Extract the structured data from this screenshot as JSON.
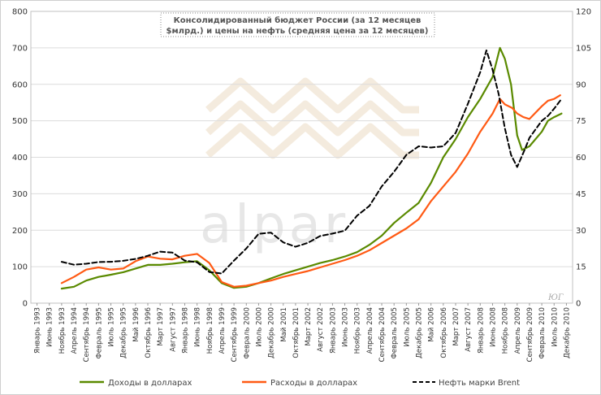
{
  "chart_data": {
    "type": "line",
    "title_lines": [
      "Консолидированный бюджет России (за 12 месяцев",
      "$млрд.) и цены на нефть (средняя цена за 12 месяцев)"
    ],
    "xlabels": [
      "Январь 1993",
      "Июнь 1993",
      "Ноябрь 1993",
      "Апрель 1994",
      "Сентябрь 1994",
      "Февраль 1995",
      "Июль 1995",
      "Декабрь 1995",
      "Май 1996",
      "Октябрь 1996",
      "Март 1997",
      "Август 1997",
      "Январь 1998",
      "Июнь 1998",
      "Ноябрь 1998",
      "Апрель 1999",
      "Сентябрь 1999",
      "Февраль 2000",
      "Июль 2000",
      "Декабрь 2000",
      "Май 2001",
      "Октябрь 2001",
      "Март 2002",
      "Август 2002",
      "Январь 2003",
      "Июнь 2003",
      "Ноябрь 2003",
      "Апрель 2004",
      "Сентябрь 2004",
      "Февраль 2005",
      "Июль 2005",
      "Декабрь 2005",
      "Май 2006",
      "Октябрь 2006",
      "Март 2007",
      "Август 2007",
      "Январь 2008",
      "Июнь 2008",
      "Ноябрь 2008",
      "Апрель 2009",
      "Сентябрь 2009",
      "Февраль 2010",
      "Июль 2010",
      "Декабрь 2010"
    ],
    "y_left": {
      "min": 0,
      "max": 800,
      "ticks": [
        "0",
        "100",
        "200",
        "300",
        "400",
        "500",
        "600",
        "700",
        "800"
      ]
    },
    "y_right": {
      "min": 0,
      "max": 120,
      "ticks": [
        "0",
        "15",
        "30",
        "45",
        "60",
        "75",
        "90",
        "105",
        "120"
      ]
    },
    "series": [
      {
        "name": "Доходы в долларах",
        "color": "#5a8a00",
        "axis": "left",
        "style": "solid",
        "points": [
          [
            2,
            40
          ],
          [
            3,
            45
          ],
          [
            4,
            62
          ],
          [
            5,
            72
          ],
          [
            6,
            78
          ],
          [
            7,
            85
          ],
          [
            8,
            95
          ],
          [
            9,
            105
          ],
          [
            10,
            105
          ],
          [
            11,
            108
          ],
          [
            12,
            112
          ],
          [
            13,
            115
          ],
          [
            14,
            90
          ],
          [
            15,
            55
          ],
          [
            16,
            42
          ],
          [
            17,
            45
          ],
          [
            18,
            55
          ],
          [
            19,
            68
          ],
          [
            20,
            80
          ],
          [
            21,
            90
          ],
          [
            22,
            100
          ],
          [
            23,
            110
          ],
          [
            24,
            118
          ],
          [
            25,
            128
          ],
          [
            26,
            140
          ],
          [
            27,
            160
          ],
          [
            28,
            185
          ],
          [
            29,
            220
          ],
          [
            30,
            248
          ],
          [
            31,
            275
          ],
          [
            32,
            330
          ],
          [
            33,
            400
          ],
          [
            34,
            450
          ],
          [
            35,
            510
          ],
          [
            36,
            560
          ],
          [
            37,
            620
          ],
          [
            37.6,
            700
          ],
          [
            38,
            670
          ],
          [
            38.5,
            600
          ],
          [
            39,
            460
          ],
          [
            39.4,
            420
          ],
          [
            40,
            430
          ],
          [
            41,
            470
          ],
          [
            41.5,
            500
          ],
          [
            42,
            510
          ],
          [
            42.6,
            520
          ]
        ]
      },
      {
        "name": "Расходы в долларах",
        "color": "#ff5a14",
        "axis": "left",
        "style": "solid",
        "points": [
          [
            2,
            55
          ],
          [
            3,
            72
          ],
          [
            4,
            92
          ],
          [
            5,
            98
          ],
          [
            6,
            92
          ],
          [
            7,
            95
          ],
          [
            8,
            115
          ],
          [
            9,
            128
          ],
          [
            10,
            122
          ],
          [
            11,
            120
          ],
          [
            12,
            130
          ],
          [
            13,
            135
          ],
          [
            14,
            110
          ],
          [
            15,
            58
          ],
          [
            16,
            45
          ],
          [
            17,
            48
          ],
          [
            18,
            55
          ],
          [
            19,
            62
          ],
          [
            20,
            72
          ],
          [
            21,
            80
          ],
          [
            22,
            88
          ],
          [
            23,
            98
          ],
          [
            24,
            108
          ],
          [
            25,
            118
          ],
          [
            26,
            130
          ],
          [
            27,
            145
          ],
          [
            28,
            165
          ],
          [
            29,
            185
          ],
          [
            30,
            205
          ],
          [
            31,
            230
          ],
          [
            32,
            280
          ],
          [
            33,
            320
          ],
          [
            34,
            360
          ],
          [
            35,
            410
          ],
          [
            36,
            470
          ],
          [
            37,
            520
          ],
          [
            37.6,
            560
          ],
          [
            38,
            545
          ],
          [
            38.6,
            535
          ],
          [
            39,
            520
          ],
          [
            39.5,
            510
          ],
          [
            40,
            505
          ],
          [
            41,
            540
          ],
          [
            41.5,
            555
          ],
          [
            42,
            560
          ],
          [
            42.5,
            570
          ]
        ]
      },
      {
        "name": "Нефть марки Brent",
        "color": "#000000",
        "axis": "right",
        "style": "dashed",
        "points": [
          [
            2,
            17
          ],
          [
            3,
            15.8
          ],
          [
            4,
            16.2
          ],
          [
            5,
            16.9
          ],
          [
            6,
            17
          ],
          [
            7,
            17.4
          ],
          [
            8,
            18.2
          ],
          [
            9,
            19.5
          ],
          [
            10,
            21.2
          ],
          [
            11,
            20.8
          ],
          [
            12,
            17.5
          ],
          [
            13,
            16.8
          ],
          [
            14,
            12.8
          ],
          [
            15,
            12.2
          ],
          [
            16,
            17.5
          ],
          [
            17,
            22.5
          ],
          [
            18,
            28.5
          ],
          [
            19,
            29
          ],
          [
            20,
            25
          ],
          [
            21,
            23.2
          ],
          [
            22,
            24.8
          ],
          [
            23,
            27.6
          ],
          [
            24,
            28.6
          ],
          [
            25,
            29.8
          ],
          [
            26,
            36
          ],
          [
            27,
            40
          ],
          [
            28,
            48
          ],
          [
            29,
            54
          ],
          [
            30,
            61
          ],
          [
            31,
            64.5
          ],
          [
            32,
            64
          ],
          [
            33,
            64.5
          ],
          [
            34,
            70
          ],
          [
            35,
            82
          ],
          [
            36,
            95
          ],
          [
            36.5,
            104
          ],
          [
            37,
            96
          ],
          [
            37.5,
            86
          ],
          [
            38,
            72
          ],
          [
            38.5,
            61
          ],
          [
            39,
            56
          ],
          [
            39.6,
            63
          ],
          [
            40,
            68
          ],
          [
            41,
            75
          ],
          [
            41.5,
            77
          ],
          [
            42,
            80
          ],
          [
            42.6,
            84
          ]
        ]
      }
    ],
    "legend_position": "bottom",
    "gridlines": true
  },
  "watermark": "alpar",
  "signature": "ЮГ"
}
